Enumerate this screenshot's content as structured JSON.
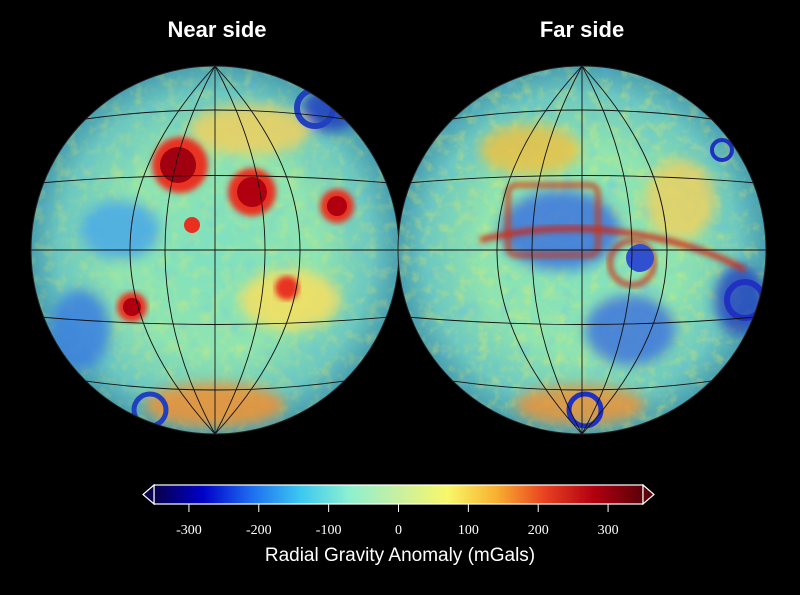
{
  "maps": {
    "near": {
      "title": "Near side"
    },
    "far": {
      "title": "Far side"
    }
  },
  "colorbar": {
    "title": "Radial Gravity Anomaly (mGals)",
    "min": -350,
    "max": 350,
    "ticks": [
      -300,
      -200,
      -100,
      0,
      100,
      200,
      300
    ],
    "tick_labels": [
      "-300",
      "-200",
      "-100",
      "0",
      "100",
      "200",
      "300"
    ],
    "colors": [
      "#08004a",
      "#0000c8",
      "#1e6ef0",
      "#3cc8f0",
      "#8ef0d0",
      "#c8f0a0",
      "#f8f86a",
      "#f8b030",
      "#e84020",
      "#b00010",
      "#5a0008"
    ]
  }
}
